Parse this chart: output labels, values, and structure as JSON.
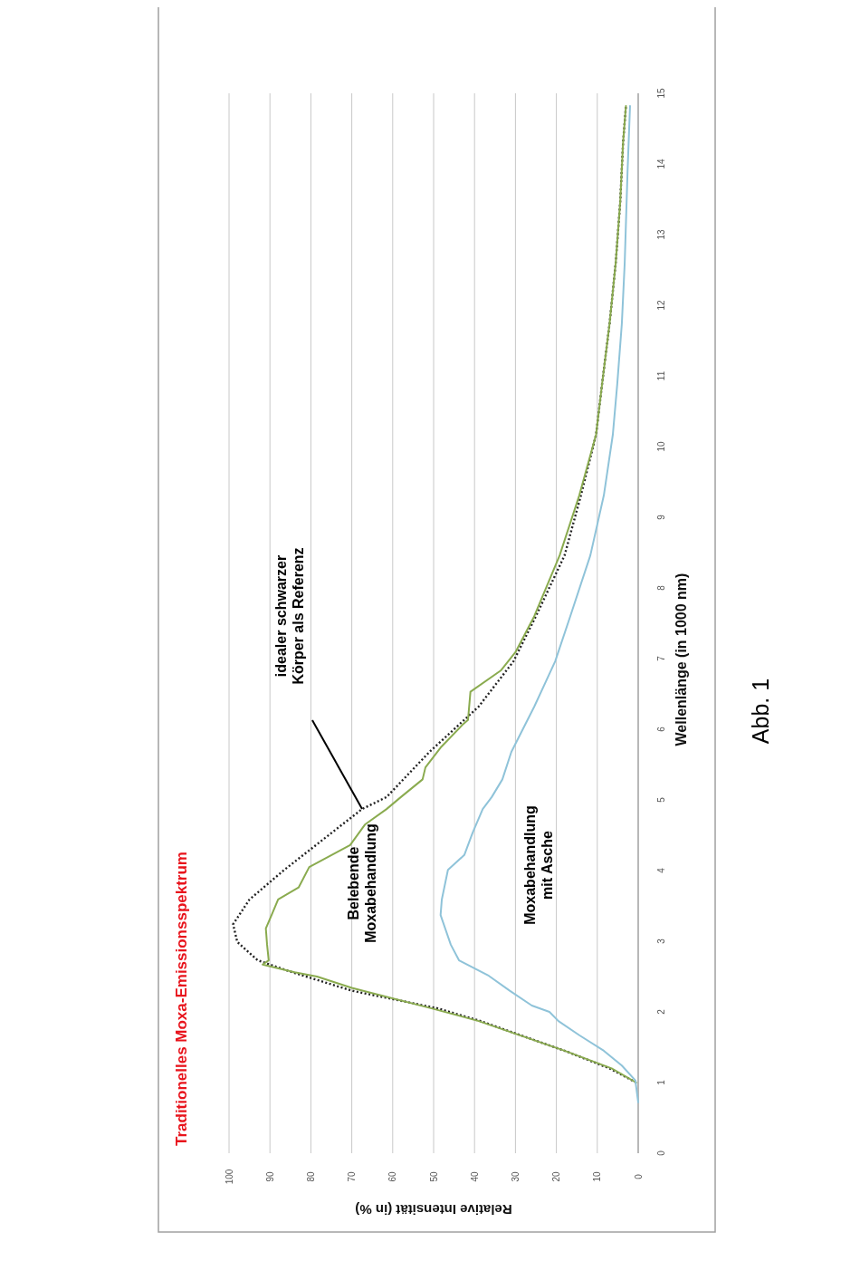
{
  "chart_data": {
    "type": "line",
    "title": "Traditionelles Moxa-Emissionsspektrum",
    "xlabel": "Relative Intensität (in %)",
    "ylabel": "Wellenlänge (in 1000 nm)",
    "xlim": [
      100,
      0
    ],
    "xticks": [
      0,
      10,
      20,
      30,
      40,
      50,
      60,
      70,
      80,
      90,
      100
    ],
    "ylim": [
      0,
      15
    ],
    "yticks": [
      0,
      1,
      2,
      3,
      4,
      5,
      6,
      7,
      8,
      9,
      10,
      11,
      12,
      13,
      14,
      15
    ],
    "grid": "x",
    "series": [
      {
        "color": "#222222",
        "line_style": "dotted",
        "values": [
          1.0,
          1.2,
          1.45,
          1.87,
          2.05,
          2.3,
          2.56,
          2.73,
          2.99,
          3.24,
          3.59,
          4.01,
          4.44,
          4.87,
          5.04,
          5.68,
          6.32,
          6.96,
          7.6,
          8.46,
          9.31,
          10.17,
          10.9,
          11.74,
          12.6,
          13.46,
          14.3,
          14.82
        ],
        "x": [
          0.5,
          7,
          18,
          38.5,
          49,
          70,
          84.5,
          93,
          98,
          99,
          95,
          86.5,
          77,
          67.5,
          61.5,
          51,
          39,
          30.5,
          25,
          18,
          14,
          10.3,
          8.8,
          7,
          5.5,
          4.4,
          3.7,
          3
        ]
      },
      {
        "color": "#8aab4f",
        "line_style": "solid",
        "values": [
          1.0,
          1.2,
          1.45,
          1.87,
          2.05,
          2.34,
          2.5,
          2.56,
          2.67,
          2.73,
          2.95,
          3.18,
          3.37,
          3.59,
          3.76,
          4.05,
          4.36,
          4.65,
          4.87,
          5.04,
          5.29,
          5.46,
          5.74,
          6.06,
          6.13,
          6.53,
          6.83,
          7.09,
          7.6,
          8.46,
          9.31,
          10.17,
          10.9,
          11.74,
          12.6,
          13.46,
          14.3,
          14.82
        ],
        "x": [
          0.5,
          6.5,
          18,
          39,
          50.5,
          70,
          78.5,
          84,
          91.8,
          90.3,
          90.7,
          91,
          89.6,
          88,
          83,
          80.4,
          70.4,
          66.8,
          61.5,
          58,
          52.7,
          52,
          48.3,
          43,
          41.6,
          41,
          33.6,
          30,
          25.4,
          19.2,
          14.4,
          10.3,
          8.8,
          7,
          5.5,
          4.4,
          3.7,
          3
        ]
      },
      {
        "color": "#8fc3d9",
        "line_style": "solid",
        "values": [
          0.72,
          1.03,
          1.24,
          1.45,
          1.67,
          1.87,
          2.0,
          2.09,
          2.3,
          2.51,
          2.73,
          2.95,
          3.37,
          3.59,
          4.01,
          4.22,
          4.53,
          4.87,
          5.04,
          5.29,
          5.68,
          6.32,
          6.96,
          7.6,
          8.46,
          9.31,
          10.17,
          10.9,
          11.74,
          12.6,
          13.9,
          14.82
        ],
        "x": [
          0,
          0.7,
          4,
          8.4,
          14.4,
          19.5,
          21.7,
          26,
          31.4,
          36.5,
          43.8,
          45.8,
          48.3,
          48,
          46.5,
          42.5,
          40.5,
          38,
          35.8,
          33.2,
          31,
          25.4,
          20.3,
          16.6,
          11.7,
          8.4,
          6.2,
          5.1,
          4,
          3.3,
          2.6,
          2
        ]
      }
    ],
    "annotations": [
      "Belebende\nMoxabehandlung",
      "Moxabehandlung\nmit Asche",
      "idealer schwarzer\nKörper als Referenz",
      "Abb. 1"
    ]
  }
}
